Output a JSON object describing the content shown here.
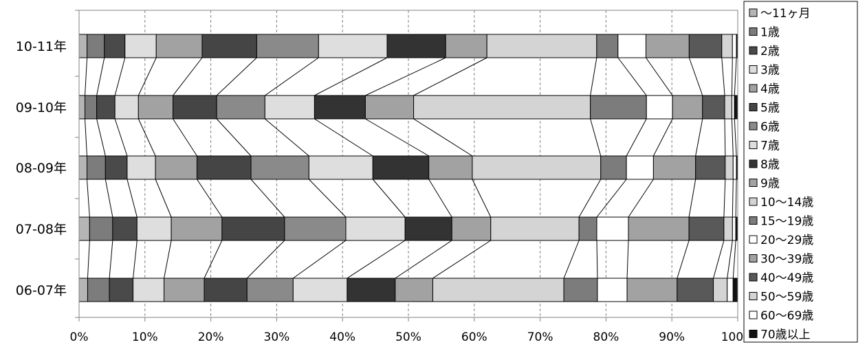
{
  "chart_data": {
    "type": "bar",
    "orientation": "horizontal",
    "stacked": "100%",
    "categories": [
      "10-11年",
      "09-10年",
      "08-09年",
      "07-08年",
      "06-07年"
    ],
    "xlim": [
      0,
      100
    ],
    "x_ticks": [
      "0%",
      "10%",
      "20%",
      "30%",
      "40%",
      "50%",
      "60%",
      "70%",
      "80%",
      "90%",
      "100%"
    ],
    "grid": "vertical dashed",
    "series_connector_lines": true,
    "legend_position": "right",
    "series": [
      {
        "name": "～11ヶ月",
        "color": "#b5b5b5",
        "values": [
          1.2,
          0.9,
          1.2,
          1.6,
          1.3
        ]
      },
      {
        "name": "1歳",
        "color": "#7c7c7c",
        "values": [
          2.6,
          1.8,
          2.8,
          3.5,
          3.3
        ]
      },
      {
        "name": "2歳",
        "color": "#4a4a4a",
        "values": [
          3.1,
          2.8,
          3.3,
          3.7,
          3.6
        ]
      },
      {
        "name": "3歳",
        "color": "#dedede",
        "values": [
          4.7,
          3.6,
          4.3,
          5.2,
          4.7
        ]
      },
      {
        "name": "4歳",
        "color": "#a2a2a2",
        "values": [
          6.9,
          5.3,
          6.3,
          7.7,
          6.1
        ]
      },
      {
        "name": "5歳",
        "color": "#454545",
        "values": [
          8.2,
          6.7,
          8.2,
          9.5,
          6.5
        ]
      },
      {
        "name": "6歳",
        "color": "#8a8a8a",
        "values": [
          9.3,
          7.4,
          8.8,
          9.3,
          7.0
        ]
      },
      {
        "name": "7歳",
        "color": "#dedede",
        "values": [
          10.3,
          7.6,
          9.7,
          9.0,
          8.2
        ]
      },
      {
        "name": "8歳",
        "color": "#333333",
        "values": [
          8.8,
          7.8,
          8.5,
          7.1,
          7.3
        ]
      },
      {
        "name": "9歳",
        "color": "#a2a2a2",
        "values": [
          6.2,
          7.4,
          6.6,
          5.9,
          5.7
        ]
      },
      {
        "name": "10～14歳",
        "color": "#d4d4d4",
        "values": [
          16.5,
          27.1,
          19.5,
          13.4,
          19.9
        ]
      },
      {
        "name": "15～19歳",
        "color": "#7c7c7c",
        "values": [
          3.2,
          8.6,
          3.9,
          2.7,
          5.1
        ]
      },
      {
        "name": "20～29歳",
        "color": "#ffffff",
        "values": [
          4.2,
          4.0,
          4.1,
          4.8,
          4.5
        ]
      },
      {
        "name": "30～39歳",
        "color": "#a2a2a2",
        "values": [
          6.5,
          4.6,
          6.4,
          9.2,
          7.6
        ]
      },
      {
        "name": "40～49歳",
        "color": "#595959",
        "values": [
          4.9,
          3.4,
          4.5,
          5.3,
          5.5
        ]
      },
      {
        "name": "50～59歳",
        "color": "#d4d4d4",
        "values": [
          1.6,
          1.1,
          1.2,
          1.3,
          2.1
        ]
      },
      {
        "name": "60～69歳",
        "color": "#ffffff",
        "values": [
          0.6,
          0.4,
          0.5,
          0.5,
          0.9
        ]
      },
      {
        "name": "70歳以上",
        "color": "#111111",
        "values": [
          0.2,
          0.5,
          0.2,
          0.3,
          0.7
        ]
      }
    ]
  }
}
